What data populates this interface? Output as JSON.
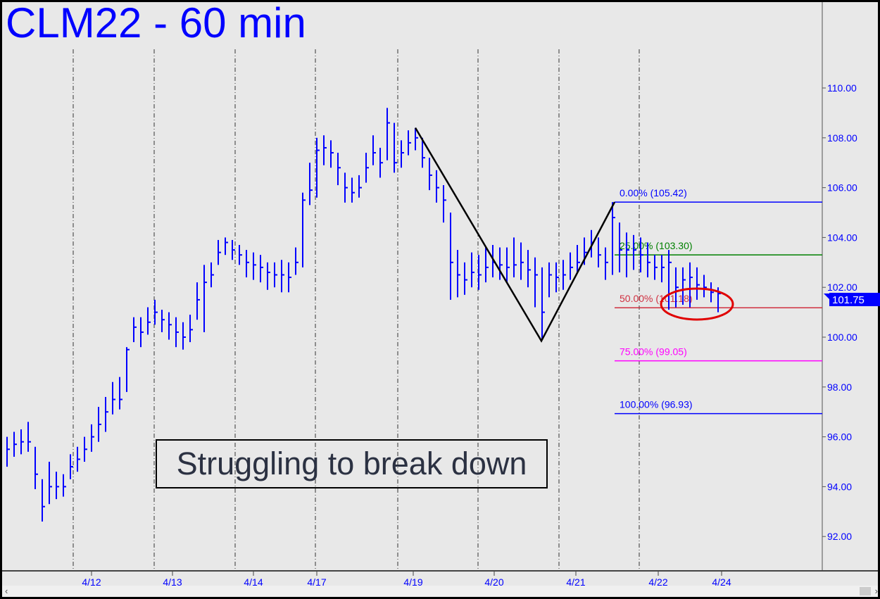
{
  "title": "CLM22 - 60 min",
  "annotation": "Struggling to break down",
  "colors": {
    "bars": "#0000ff",
    "axis_text": "#0000ff",
    "fib_0": "#0000ff",
    "fib_25": "#008000",
    "fib_50": "#d03040",
    "fib_75": "#ff00ff",
    "fib_100": "#0000ff",
    "circle": "#e00000",
    "zigzag": "#000000"
  },
  "chart_data": {
    "type": "ohlc-bar",
    "ylim": [
      90.5,
      111.5
    ],
    "y_ticks": [
      "92.00",
      "94.00",
      "96.00",
      "98.00",
      "100.00",
      "102.00",
      "104.00",
      "106.00",
      "108.00",
      "110.00"
    ],
    "x_tick_labels": [
      "4/12",
      "4/13",
      "4/14",
      "4/17",
      "4/19",
      "4/20",
      "4/21",
      "4/22",
      "4/24"
    ],
    "last_price": "101.75",
    "bars_hlc": [
      [
        96.0,
        94.8,
        95.5
      ],
      [
        96.2,
        95.2,
        95.7
      ],
      [
        96.3,
        95.3,
        95.8
      ],
      [
        96.6,
        95.4,
        95.8
      ],
      [
        95.6,
        93.9,
        94.5
      ],
      [
        94.3,
        92.6,
        93.2
      ],
      [
        95.0,
        93.3,
        94.0
      ],
      [
        94.6,
        93.5,
        94.0
      ],
      [
        94.5,
        93.6,
        94.0
      ],
      [
        95.3,
        94.3,
        94.8
      ],
      [
        95.6,
        94.6,
        95.1
      ],
      [
        96.0,
        95.0,
        95.5
      ],
      [
        96.5,
        95.4,
        96.0
      ],
      [
        97.2,
        95.8,
        96.5
      ],
      [
        97.6,
        96.2,
        97.0
      ],
      [
        98.2,
        96.9,
        97.5
      ],
      [
        98.4,
        97.1,
        97.5
      ],
      [
        99.6,
        97.8,
        99.5
      ],
      [
        100.8,
        99.8,
        100.4
      ],
      [
        100.8,
        99.6,
        100.2
      ],
      [
        101.2,
        100.1,
        100.6
      ],
      [
        101.5,
        100.5,
        101.0
      ],
      [
        101.1,
        100.2,
        100.7
      ],
      [
        101.0,
        99.9,
        100.5
      ],
      [
        100.8,
        99.6,
        100.2
      ],
      [
        100.6,
        99.5,
        100.0
      ],
      [
        100.9,
        99.8,
        100.3
      ],
      [
        102.2,
        100.7,
        101.5
      ],
      [
        102.9,
        100.2,
        102.2
      ],
      [
        103.0,
        102.0,
        102.5
      ],
      [
        103.9,
        102.9,
        103.4
      ],
      [
        104.0,
        103.3,
        103.8
      ],
      [
        103.9,
        103.1,
        103.5
      ],
      [
        103.7,
        102.9,
        103.3
      ],
      [
        103.5,
        102.4,
        103.0
      ],
      [
        103.4,
        102.3,
        102.9
      ],
      [
        103.3,
        102.2,
        102.8
      ],
      [
        103.0,
        101.9,
        102.6
      ],
      [
        103.0,
        102.0,
        102.5
      ],
      [
        103.1,
        101.8,
        102.5
      ],
      [
        103.0,
        101.8,
        102.4
      ],
      [
        103.6,
        102.5,
        103.0
      ],
      [
        105.8,
        102.8,
        105.5
      ],
      [
        107.0,
        105.3,
        105.9
      ],
      [
        108.0,
        105.6,
        107.5
      ],
      [
        108.1,
        106.9,
        107.6
      ],
      [
        107.9,
        106.8,
        107.4
      ],
      [
        107.4,
        106.1,
        106.8
      ],
      [
        106.6,
        105.4,
        106.0
      ],
      [
        106.4,
        105.4,
        105.8
      ],
      [
        106.5,
        105.6,
        106.0
      ],
      [
        107.4,
        106.2,
        106.8
      ],
      [
        108.1,
        106.9,
        107.4
      ],
      [
        107.6,
        106.4,
        107.0
      ],
      [
        109.2,
        107.1,
        108.6
      ],
      [
        108.6,
        106.6,
        107.0
      ],
      [
        107.9,
        106.8,
        107.4
      ],
      [
        108.3,
        107.3,
        107.8
      ],
      [
        108.4,
        107.5,
        108.0
      ],
      [
        108.0,
        106.8,
        107.2
      ],
      [
        107.2,
        105.9,
        106.5
      ],
      [
        106.7,
        105.4,
        106.0
      ],
      [
        106.1,
        104.6,
        105.5
      ],
      [
        105.0,
        101.5,
        103.0
      ],
      [
        103.5,
        101.6,
        102.5
      ],
      [
        103.0,
        101.7,
        102.3
      ],
      [
        103.4,
        102.0,
        102.6
      ],
      [
        103.3,
        101.9,
        102.5
      ],
      [
        103.6,
        102.2,
        102.8
      ],
      [
        103.7,
        102.4,
        103.0
      ],
      [
        103.6,
        102.3,
        102.9
      ],
      [
        103.6,
        102.2,
        102.8
      ],
      [
        104.0,
        102.4,
        102.9
      ],
      [
        103.8,
        102.3,
        103.0
      ],
      [
        103.5,
        102.0,
        102.7
      ],
      [
        103.2,
        101.2,
        102.5
      ],
      [
        102.8,
        99.9,
        101.0
      ],
      [
        103.0,
        101.6,
        102.5
      ],
      [
        103.0,
        101.8,
        102.4
      ],
      [
        103.1,
        101.9,
        102.5
      ],
      [
        103.4,
        102.3,
        102.8
      ],
      [
        103.7,
        102.6,
        103.0
      ],
      [
        104.0,
        102.9,
        103.4
      ],
      [
        104.3,
        103.2,
        103.8
      ],
      [
        104.0,
        102.8,
        103.3
      ],
      [
        103.6,
        102.3,
        103.0
      ],
      [
        105.42,
        102.5,
        104.8
      ],
      [
        104.6,
        102.6,
        103.5
      ],
      [
        104.2,
        102.4,
        103.5
      ],
      [
        104.1,
        102.7,
        103.5
      ],
      [
        104.0,
        102.6,
        103.3
      ],
      [
        103.8,
        102.4,
        103.0
      ],
      [
        103.3,
        102.3,
        102.8
      ],
      [
        103.3,
        102.2,
        102.8
      ],
      [
        103.5,
        101.1,
        103.0
      ],
      [
        102.8,
        101.2,
        102.0
      ],
      [
        102.8,
        101.3,
        102.3
      ],
      [
        103.0,
        101.2,
        102.4
      ],
      [
        102.8,
        101.5,
        102.1
      ],
      [
        102.5,
        101.6,
        102.0
      ],
      [
        102.2,
        101.4,
        101.8
      ],
      [
        102.0,
        101.0,
        101.75
      ]
    ],
    "fib_levels": [
      {
        "label": "0.00% (105.42)",
        "value": 105.42
      },
      {
        "label": "25.00% (103.30)",
        "value": 103.3
      },
      {
        "label": "50.00% (101.18)",
        "value": 101.18
      },
      {
        "label": "75.00% (99.05)",
        "value": 99.05
      },
      {
        "label": "100.00% (96.93)",
        "value": 96.93
      }
    ],
    "zigzag": [
      108.4,
      99.85,
      105.42
    ]
  }
}
